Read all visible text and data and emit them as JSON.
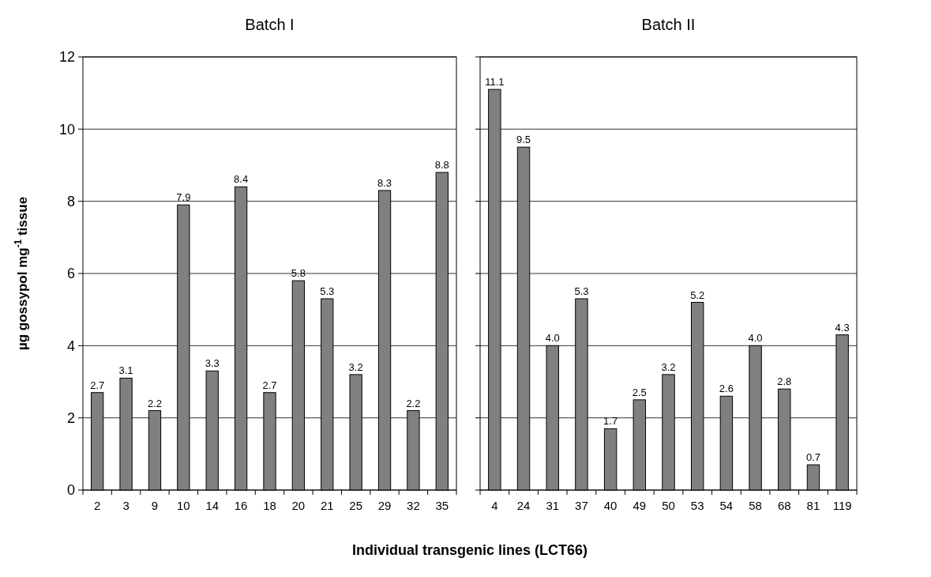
{
  "chart_data": [
    {
      "type": "bar",
      "title": "Batch I",
      "ylabel": "µg gossypol mg$^{-1}$ tissue",
      "xlabel": "Individual transgenic lines (LCT66)",
      "categories": [
        "2",
        "3",
        "9",
        "10",
        "14",
        "16",
        "18",
        "20",
        "21",
        "25",
        "29",
        "32",
        "35"
      ],
      "values": [
        2.7,
        3.1,
        2.2,
        7.9,
        3.3,
        8.4,
        2.7,
        5.8,
        5.3,
        3.2,
        8.3,
        2.2,
        8.8
      ],
      "color": "#808080",
      "ylim": [
        0,
        12
      ],
      "yticks": [
        0,
        2,
        4,
        6,
        8,
        10,
        12
      ],
      "grid": "y",
      "data_labels": true
    },
    {
      "type": "bar",
      "title": "Batch II",
      "categories": [
        "4",
        "24",
        "31",
        "37",
        "40",
        "49",
        "50",
        "53",
        "54",
        "58",
        "68",
        "81",
        "119"
      ],
      "values": [
        11.1,
        9.5,
        4.0,
        5.3,
        1.7,
        2.5,
        3.2,
        5.2,
        2.6,
        4.0,
        2.8,
        0.7,
        4.3
      ],
      "value_labels": [
        "11.1",
        "9.5",
        "4.0",
        "5.3",
        "1.7",
        "2.5",
        "3.2",
        "5.2",
        "2.6",
        "4.0",
        "2.8",
        "0.7",
        "4.3"
      ],
      "color": "#808080",
      "ylim": [
        0,
        12
      ],
      "yticks": [
        0,
        2,
        4,
        6,
        8,
        10,
        12
      ],
      "grid": "y",
      "tick_labels": "x"
    }
  ]
}
